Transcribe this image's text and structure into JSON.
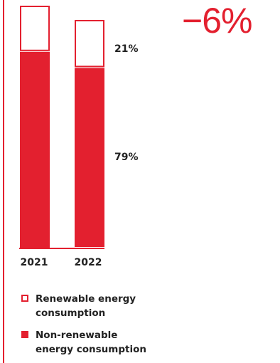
{
  "headline": {
    "change": "−6%"
  },
  "chart_data": {
    "type": "bar",
    "stacked": true,
    "normalized": true,
    "categories": [
      "2021",
      "2022"
    ],
    "series": [
      {
        "name": "Non-renewable energy consumption",
        "values": [
          81,
          79
        ]
      },
      {
        "name": "Renewable energy consumption",
        "values": [
          19,
          21
        ]
      }
    ],
    "data_labels": [
      "21%",
      "79%"
    ],
    "ylim": [
      0,
      100
    ],
    "colors": {
      "accent": "#e3202f",
      "outline_fill": "#ffffff"
    }
  },
  "legend": {
    "renewable": [
      "Renewable energy",
      "consumption"
    ],
    "nonrenewable": [
      "Non-renewable",
      "energy consumption"
    ]
  }
}
